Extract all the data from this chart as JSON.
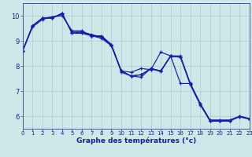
{
  "title": "Graphe des températures (°c)",
  "background_color": "#cce8e8",
  "grid_color": "#aacccc",
  "line_color": "#1a1aaa",
  "x_ticks": [
    0,
    1,
    2,
    3,
    4,
    5,
    6,
    7,
    8,
    9,
    10,
    11,
    12,
    13,
    14,
    15,
    16,
    17,
    18,
    19,
    20,
    21,
    22,
    23
  ],
  "y_ticks": [
    6,
    7,
    8,
    9,
    10
  ],
  "xlim": [
    0,
    23
  ],
  "ylim": [
    5.5,
    10.5
  ],
  "line1": [
    8.6,
    9.6,
    9.9,
    9.9,
    10.1,
    9.3,
    9.3,
    9.2,
    9.15,
    8.85,
    7.75,
    7.6,
    7.55,
    7.9,
    7.8,
    8.4,
    8.4,
    7.3,
    6.5,
    5.8,
    5.8,
    5.8,
    6.0,
    5.9
  ],
  "line2": [
    8.6,
    9.6,
    9.9,
    9.9,
    10.1,
    9.3,
    9.35,
    9.2,
    9.2,
    8.85,
    7.8,
    7.6,
    7.65,
    7.9,
    7.8,
    8.4,
    8.35,
    7.25,
    6.45,
    5.82,
    5.82,
    5.82,
    5.98,
    5.88
  ],
  "line3": [
    8.6,
    9.6,
    9.9,
    9.95,
    10.05,
    9.35,
    9.35,
    9.25,
    9.15,
    8.8,
    7.8,
    7.75,
    7.9,
    7.85,
    8.55,
    8.4,
    7.3,
    7.3,
    6.5,
    5.85,
    5.85,
    5.85,
    6.0,
    5.9
  ],
  "line4": [
    8.6,
    9.55,
    9.85,
    9.95,
    10.0,
    9.4,
    9.4,
    9.2,
    9.1,
    8.8,
    7.8,
    7.6,
    7.65,
    7.88,
    7.78,
    8.38,
    8.35,
    7.28,
    6.5,
    5.82,
    5.82,
    5.82,
    5.98,
    5.88
  ]
}
